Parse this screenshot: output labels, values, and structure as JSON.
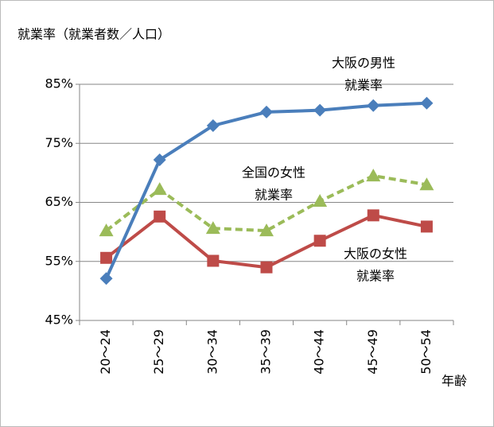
{
  "chart_data": {
    "type": "line",
    "title": "就業率（就業者数／人口）",
    "xlabel": "年齢",
    "categories": [
      "20～24",
      "25～29",
      "30～34",
      "35～39",
      "40～44",
      "45～49",
      "50～54"
    ],
    "series": [
      {
        "name": "大阪の男性就業率",
        "color": "#4a7ebb",
        "marker": "diamond",
        "dash": false,
        "values": [
          52.1,
          72.2,
          78.0,
          80.3,
          80.6,
          81.4,
          81.8
        ]
      },
      {
        "name": "全国の女性就業率",
        "color": "#9bbb59",
        "marker": "triangle",
        "dash": true,
        "values": [
          60.2,
          67.2,
          60.6,
          60.2,
          65.2,
          69.5,
          68.0
        ]
      },
      {
        "name": "大阪の女性就業率",
        "color": "#be4b48",
        "marker": "square",
        "dash": false,
        "values": [
          55.6,
          62.6,
          55.1,
          54.0,
          58.5,
          62.8,
          60.9
        ]
      }
    ],
    "annotations": [
      {
        "lines": [
          "大阪の男性",
          "就業率"
        ]
      },
      {
        "lines": [
          "全国の女性",
          "就業率"
        ]
      },
      {
        "lines": [
          "大阪の女性",
          "就業率"
        ]
      }
    ],
    "ylim": [
      45,
      85
    ],
    "yticks": [
      {
        "value": 45,
        "label": "45%"
      },
      {
        "value": 55,
        "label": "55%"
      },
      {
        "value": 65,
        "label": "65%"
      },
      {
        "value": 75,
        "label": "75%"
      },
      {
        "value": 85,
        "label": "85%"
      }
    ],
    "grid": true
  }
}
